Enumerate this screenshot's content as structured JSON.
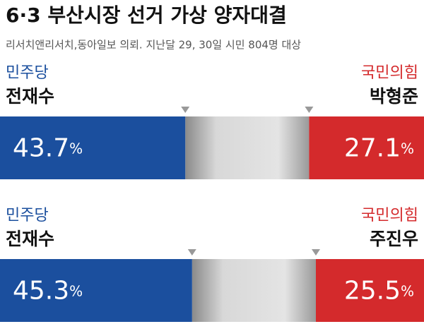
{
  "chart_data": {
    "type": "head-to-head",
    "title": "6·3 부산시장 선거 가상 양자대결",
    "subtitle": "리서치앤리서치,동아일보 의뢰. 지난달 29, 30일 시민 804명 대상",
    "xlim": [
      0,
      100
    ],
    "series": [
      {
        "name": "민주당",
        "color": "#1b4f9e",
        "candidates": [
          "전재수",
          "전재수"
        ],
        "values": [
          43.7,
          45.3
        ],
        "value_labels": [
          "43.7%",
          "45.3%"
        ]
      },
      {
        "name": "국민의힘",
        "color": "#d42a2c",
        "candidates": [
          "박형준",
          "주진우"
        ],
        "values": [
          27.1,
          25.5
        ],
        "value_labels": [
          "27.1%",
          "25.5%"
        ]
      }
    ]
  }
}
